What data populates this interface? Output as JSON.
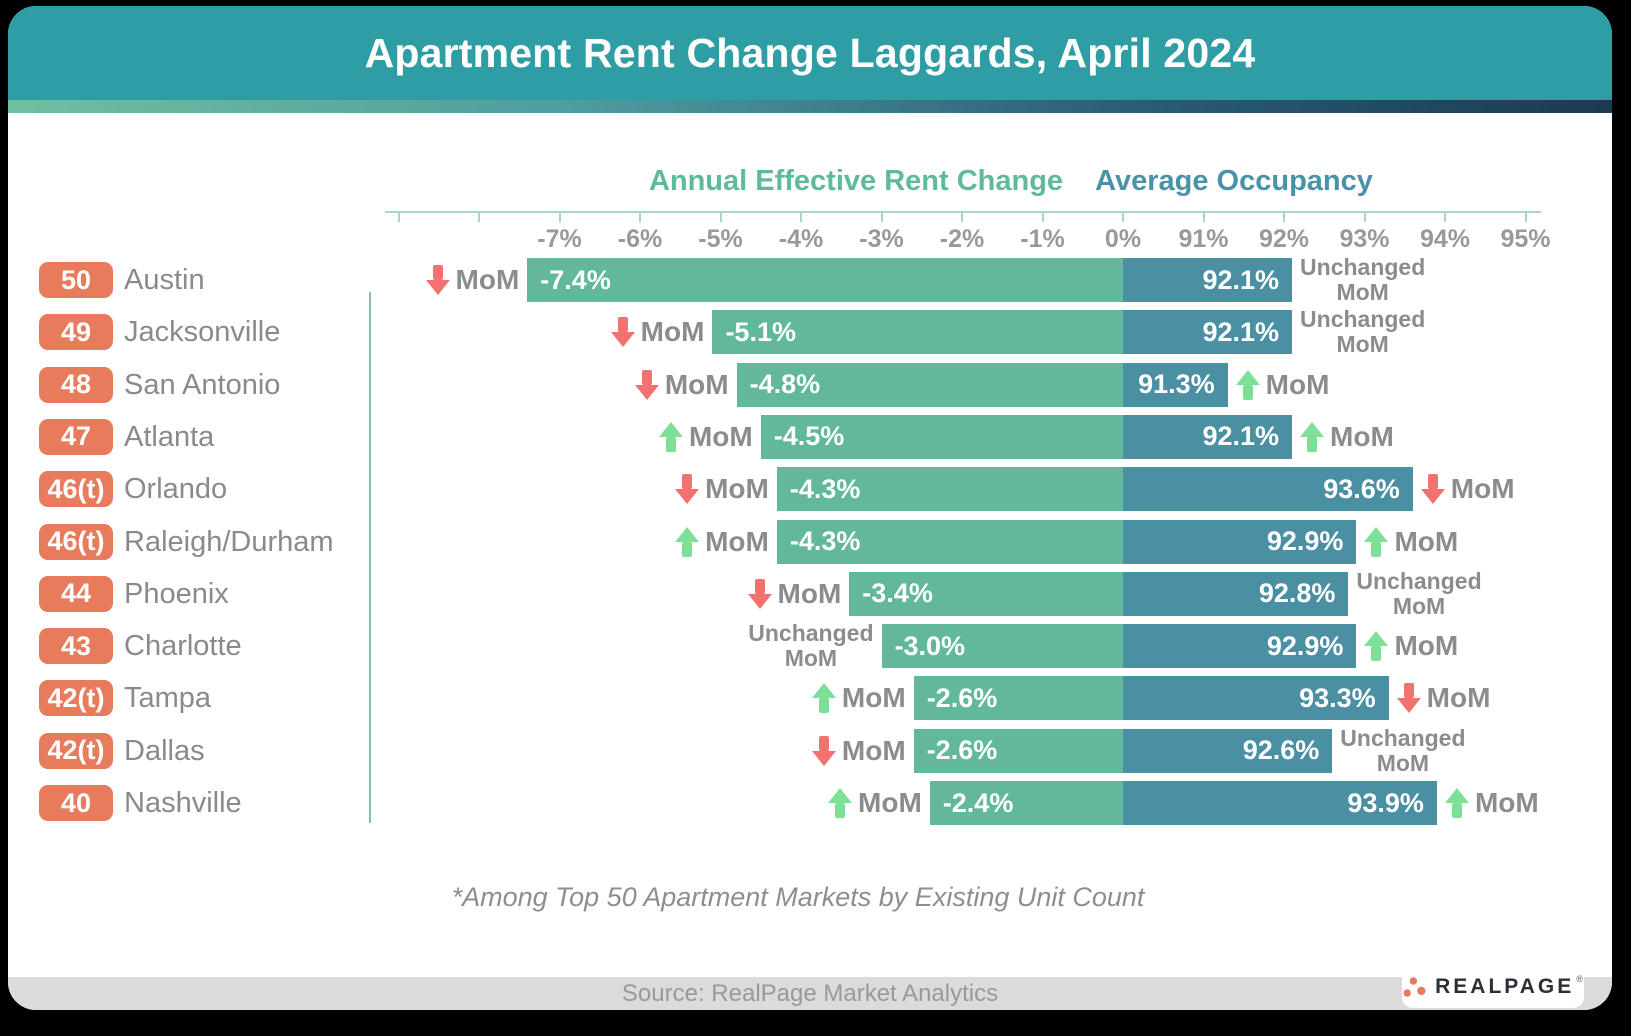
{
  "header": {
    "title": "Apartment Rent Change Laggards, April 2024"
  },
  "chart_data": {
    "type": "bar",
    "orientation": "horizontal",
    "title": "Apartment Rent Change Laggards, April 2024",
    "axis": {
      "rent": {
        "label": "Annual Effective Rent Change",
        "range": [
          -9,
          0
        ],
        "ticks": [
          {
            "v": -9,
            "label": ""
          },
          {
            "v": -8,
            "label": ""
          },
          {
            "v": -7,
            "label": "-7%"
          },
          {
            "v": -6,
            "label": "-6%"
          },
          {
            "v": -5,
            "label": "-5%"
          },
          {
            "v": -4,
            "label": "-4%"
          },
          {
            "v": -3,
            "label": "-3%"
          },
          {
            "v": -2,
            "label": "-2%"
          },
          {
            "v": -1,
            "label": "-1%"
          },
          {
            "v": 0,
            "label": "0%"
          }
        ]
      },
      "occupancy": {
        "label": "Average Occupancy",
        "range": [
          90,
          95
        ],
        "ticks": [
          {
            "v": 91,
            "label": "91%"
          },
          {
            "v": 92,
            "label": "92%"
          },
          {
            "v": 93,
            "label": "93%"
          },
          {
            "v": 94,
            "label": "94%"
          },
          {
            "v": 95,
            "label": "95%"
          }
        ]
      }
    },
    "mom_text": "MoM",
    "unchanged_lines": [
      "Unchanged",
      "MoM"
    ],
    "markets": [
      {
        "rank": "50",
        "city": "Austin",
        "rent_change_pct": -7.4,
        "rent_change_label": "-7.4%",
        "rent_mom": "down",
        "occupancy_pct": 92.1,
        "occupancy_label": "92.1%",
        "occupancy_mom": "unchanged"
      },
      {
        "rank": "49",
        "city": "Jacksonville",
        "rent_change_pct": -5.1,
        "rent_change_label": "-5.1%",
        "rent_mom": "down",
        "occupancy_pct": 92.1,
        "occupancy_label": "92.1%",
        "occupancy_mom": "unchanged"
      },
      {
        "rank": "48",
        "city": "San Antonio",
        "rent_change_pct": -4.8,
        "rent_change_label": "-4.8%",
        "rent_mom": "down",
        "occupancy_pct": 91.3,
        "occupancy_label": "91.3%",
        "occupancy_mom": "up"
      },
      {
        "rank": "47",
        "city": "Atlanta",
        "rent_change_pct": -4.5,
        "rent_change_label": "-4.5%",
        "rent_mom": "up",
        "occupancy_pct": 92.1,
        "occupancy_label": "92.1%",
        "occupancy_mom": "up"
      },
      {
        "rank": "46(t)",
        "city": "Orlando",
        "rent_change_pct": -4.3,
        "rent_change_label": "-4.3%",
        "rent_mom": "down",
        "occupancy_pct": 93.6,
        "occupancy_label": "93.6%",
        "occupancy_mom": "down"
      },
      {
        "rank": "46(t)",
        "city": "Raleigh/Durham",
        "rent_change_pct": -4.3,
        "rent_change_label": "-4.3%",
        "rent_mom": "up",
        "occupancy_pct": 92.9,
        "occupancy_label": "92.9%",
        "occupancy_mom": "up"
      },
      {
        "rank": "44",
        "city": "Phoenix",
        "rent_change_pct": -3.4,
        "rent_change_label": "-3.4%",
        "rent_mom": "down",
        "occupancy_pct": 92.8,
        "occupancy_label": "92.8%",
        "occupancy_mom": "unchanged"
      },
      {
        "rank": "43",
        "city": "Charlotte",
        "rent_change_pct": -3.0,
        "rent_change_label": "-3.0%",
        "rent_mom": "unchanged",
        "occupancy_pct": 92.9,
        "occupancy_label": "92.9%",
        "occupancy_mom": "up"
      },
      {
        "rank": "42(t)",
        "city": "Tampa",
        "rent_change_pct": -2.6,
        "rent_change_label": "-2.6%",
        "rent_mom": "up",
        "occupancy_pct": 93.3,
        "occupancy_label": "93.3%",
        "occupancy_mom": "down"
      },
      {
        "rank": "42(t)",
        "city": "Dallas",
        "rent_change_pct": -2.6,
        "rent_change_label": "-2.6%",
        "rent_mom": "down",
        "occupancy_pct": 92.6,
        "occupancy_label": "92.6%",
        "occupancy_mom": "unchanged"
      },
      {
        "rank": "40",
        "city": "Nashville",
        "rent_change_pct": -2.4,
        "rent_change_label": "-2.4%",
        "rent_mom": "up",
        "occupancy_pct": 93.9,
        "occupancy_label": "93.9%",
        "occupancy_mom": "up"
      }
    ]
  },
  "footnote": "*Among Top 50 Apartment Markets by Existing Unit Count",
  "source": "Source: RealPage Market Analytics",
  "logo": {
    "text": "REALPAGE",
    "mark": "®"
  },
  "colors": {
    "header_teal": "#2E9DA4",
    "rent_bar": "#62B89C",
    "occupancy_bar": "#4A8FA2",
    "rank_badge": "#E87B5B",
    "arrow_up": "#7EE096",
    "arrow_down": "#F3716F",
    "axis_line": "#A9D6C6",
    "gray_text": "#8C8C8C"
  }
}
